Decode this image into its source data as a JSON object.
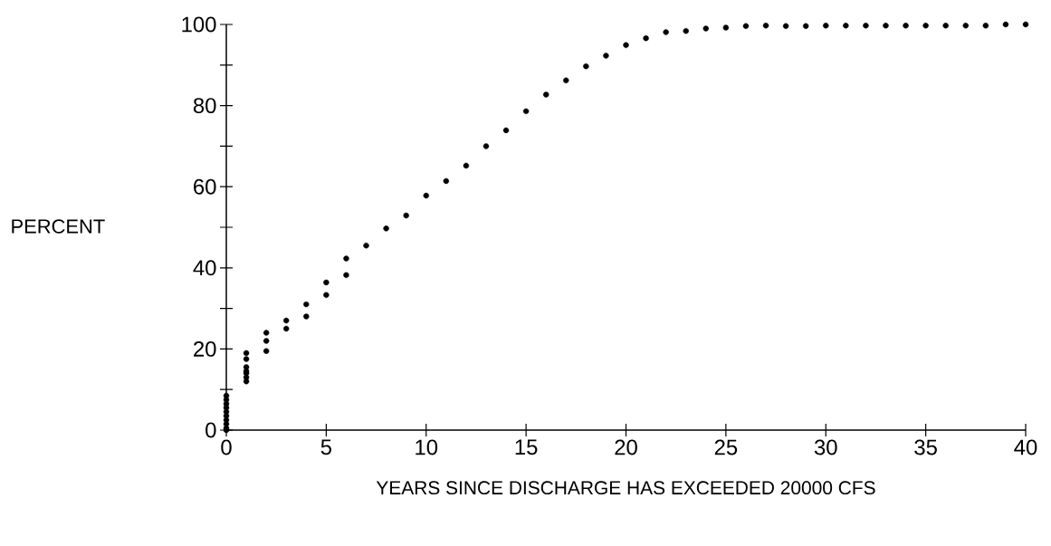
{
  "chart_data": {
    "type": "scatter",
    "xlabel": "YEARS SINCE DISCHARGE HAS EXCEEDED 20000 CFS",
    "ylabel": "PERCENT",
    "x": [
      0,
      0,
      0,
      0,
      0,
      0,
      0,
      0,
      0,
      0,
      1,
      1,
      1,
      1,
      1,
      1,
      1,
      2,
      2,
      2,
      3,
      3,
      4,
      4,
      5,
      5,
      6,
      6,
      7,
      8,
      9,
      10,
      11,
      12,
      13,
      14,
      15,
      16,
      17,
      18,
      19,
      20,
      21,
      22,
      23,
      24,
      25,
      26,
      27,
      28,
      29,
      30,
      31,
      32,
      33,
      34,
      35,
      36,
      37,
      38,
      39,
      40
    ],
    "values": [
      0,
      0.5,
      1.5,
      2.5,
      3.5,
      4.5,
      5.5,
      6.5,
      7.5,
      8.5,
      19,
      17.5,
      15.5,
      14.5,
      14,
      13,
      12,
      24,
      22,
      19.5,
      27,
      25,
      31,
      28,
      36.4,
      33.3,
      42.3,
      38.2,
      45.5,
      49.7,
      52.9,
      57.8,
      61.4,
      65.2,
      70,
      73.9,
      78.6,
      82.7,
      86.2,
      89.7,
      92.3,
      94.9,
      96.6,
      98.1,
      98.4,
      99,
      99.2,
      99.6,
      99.7,
      99.6,
      99.6,
      99.7,
      99.7,
      99.7,
      99.7,
      99.7,
      99.7,
      99.7,
      99.7,
      99.7,
      100,
      100
    ],
    "color": "#000000",
    "xlim": [
      0,
      40
    ],
    "ylim": [
      0,
      100
    ],
    "xticks": [
      0,
      5,
      10,
      15,
      20,
      25,
      30,
      35,
      40
    ],
    "yticks": [
      0,
      {
        "value": 10,
        "label": null
      },
      20,
      {
        "value": 30,
        "label": null
      },
      40,
      {
        "value": 50,
        "label": null
      },
      60,
      {
        "value": 70,
        "label": null
      },
      80,
      {
        "value": 90,
        "label": null
      },
      100
    ]
  }
}
